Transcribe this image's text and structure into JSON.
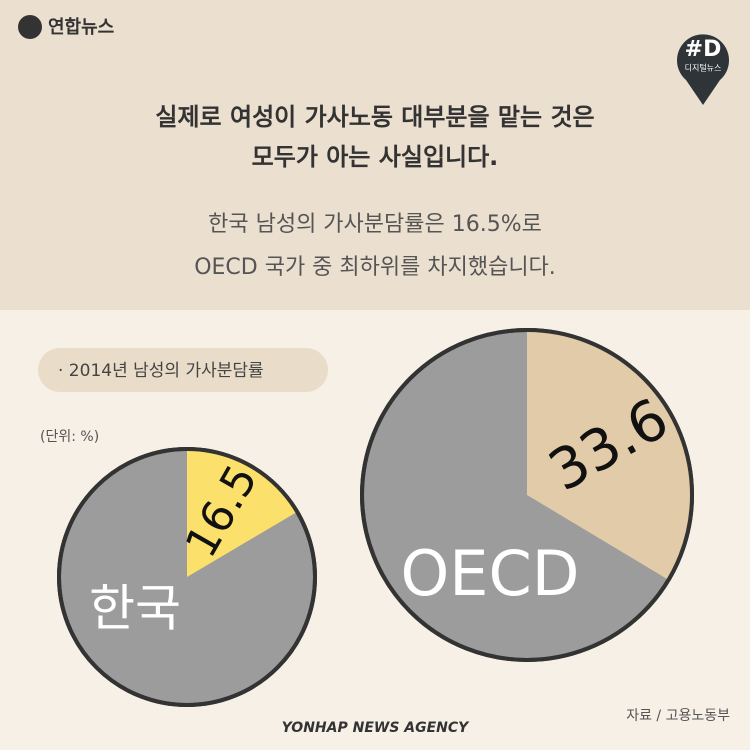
{
  "header": {
    "logo": "연합뉴스",
    "badge": "#D",
    "badge_sub": "디지털뉴스"
  },
  "headline": [
    "실제로 여성이 가사노동 대부분을 맡는 것은",
    "모두가 아는 사실입니다."
  ],
  "body": [
    "한국 남성의 가사분담률은 16.5%로",
    "OECD 국가 중 최하위를 차지했습니다."
  ],
  "chart_data": [
    {
      "type": "pie",
      "title": "· 2014년 남성의 가사분담률",
      "subtitle": "(단위: %)",
      "label": "한국",
      "values": [
        16.5
      ],
      "color": "#fbe06c",
      "rest_color": "#9c9c9c"
    },
    {
      "type": "pie",
      "label": "OECD",
      "values": [
        33.6
      ],
      "color": "#e2cba8",
      "rest_color": "#9c9c9c"
    }
  ],
  "source": "자료 / 고용노동부",
  "footer": "YONHAP NEWS AGENCY"
}
